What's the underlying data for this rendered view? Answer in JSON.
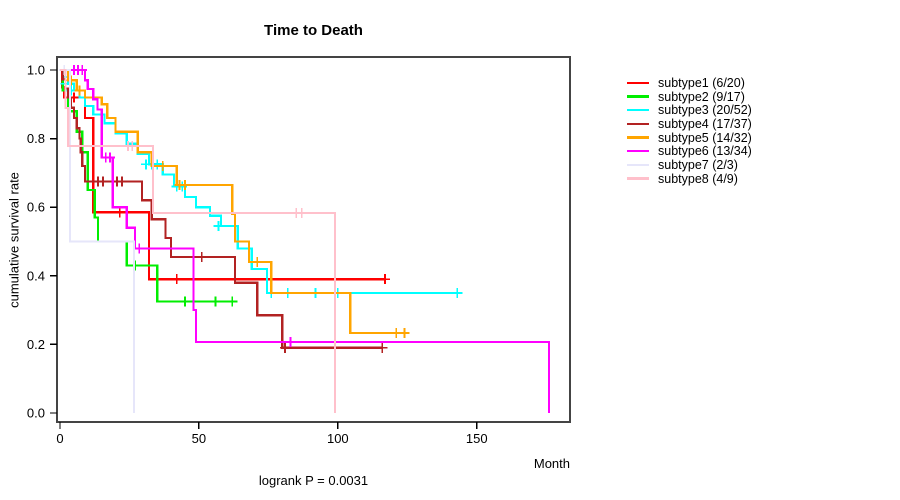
{
  "chart_data": {
    "type": "line",
    "subtype": "kaplan-meier-survival-steps",
    "title": "Time to Death",
    "xlabel": "Month",
    "ylabel": "cumulative survival rate",
    "footnote": "logrank P = 0.0031",
    "xlim": [
      0,
      183
    ],
    "ylim": [
      0,
      1
    ],
    "xticks": [
      0,
      50,
      100,
      150
    ],
    "yticks": [
      0.0,
      0.2,
      0.4,
      0.6,
      0.8,
      1.0
    ],
    "grid": false,
    "legend_position": "right-outside",
    "axis_color": "#444444",
    "series": [
      {
        "name": "subtype1",
        "label": "subtype1 (6/20)",
        "events": "6/20",
        "color": "#ff0000",
        "steps": [
          [
            0,
            1.0
          ],
          [
            0.7,
            0.95
          ],
          [
            1.5,
            0.92
          ],
          [
            9,
            0.86
          ],
          [
            12,
            0.585
          ],
          [
            32,
            0.39
          ],
          [
            117,
            0.39
          ]
        ],
        "censors": [
          [
            5,
            0.92
          ],
          [
            21.5,
            0.585
          ],
          [
            24,
            0.585
          ],
          [
            42,
            0.39
          ],
          [
            117,
            0.39
          ]
        ]
      },
      {
        "name": "subtype2",
        "label": "subtype2 (9/17)",
        "events": "9/17",
        "color": "#00ee00",
        "steps": [
          [
            0,
            1.0
          ],
          [
            1,
            0.94
          ],
          [
            3,
            0.88
          ],
          [
            6,
            0.82
          ],
          [
            8,
            0.76
          ],
          [
            10,
            0.65
          ],
          [
            12.5,
            0.57
          ],
          [
            13.7,
            0.5
          ],
          [
            24,
            0.43
          ],
          [
            35,
            0.325
          ],
          [
            62,
            0.325
          ]
        ],
        "censors": [
          [
            27,
            0.43
          ],
          [
            45,
            0.325
          ],
          [
            56,
            0.325
          ],
          [
            62,
            0.325
          ]
        ]
      },
      {
        "name": "subtype3",
        "label": "subtype3 (20/52)",
        "events": "20/52",
        "color": "#00ffff",
        "steps": [
          [
            0,
            1.0
          ],
          [
            1,
            0.98
          ],
          [
            3,
            0.96
          ],
          [
            5,
            0.94
          ],
          [
            7,
            0.92
          ],
          [
            9,
            0.895
          ],
          [
            12,
            0.87
          ],
          [
            16,
            0.845
          ],
          [
            20,
            0.815
          ],
          [
            24,
            0.785
          ],
          [
            28,
            0.755
          ],
          [
            32,
            0.725
          ],
          [
            37,
            0.695
          ],
          [
            41,
            0.66
          ],
          [
            45,
            0.63
          ],
          [
            49,
            0.6
          ],
          [
            54,
            0.575
          ],
          [
            58,
            0.545
          ],
          [
            64,
            0.48
          ],
          [
            69,
            0.42
          ],
          [
            74.5,
            0.35
          ],
          [
            143,
            0.35
          ]
        ],
        "censors": [
          [
            2,
            0.96
          ],
          [
            4,
            0.94
          ],
          [
            31,
            0.725
          ],
          [
            33,
            0.725
          ],
          [
            35,
            0.725
          ],
          [
            42,
            0.66
          ],
          [
            44,
            0.66
          ],
          [
            57,
            0.545
          ],
          [
            76,
            0.35
          ],
          [
            82,
            0.35
          ],
          [
            92,
            0.35
          ],
          [
            100,
            0.35
          ],
          [
            143,
            0.35
          ]
        ]
      },
      {
        "name": "subtype4",
        "label": "subtype4 (17/37)",
        "events": "17/37",
        "color": "#b22222",
        "steps": [
          [
            0,
            1.0
          ],
          [
            1,
            0.973
          ],
          [
            2,
            0.946
          ],
          [
            3,
            0.92
          ],
          [
            4,
            0.89
          ],
          [
            5,
            0.86
          ],
          [
            6,
            0.83
          ],
          [
            7,
            0.8
          ],
          [
            7.5,
            0.76
          ],
          [
            8,
            0.72
          ],
          [
            9,
            0.675
          ],
          [
            29.5,
            0.62
          ],
          [
            33,
            0.565
          ],
          [
            38,
            0.51
          ],
          [
            40,
            0.455
          ],
          [
            63,
            0.38
          ],
          [
            71,
            0.285
          ],
          [
            80,
            0.19
          ],
          [
            116,
            0.19
          ]
        ],
        "censors": [
          [
            13.7,
            0.675
          ],
          [
            15.5,
            0.675
          ],
          [
            20.5,
            0.675
          ],
          [
            22.3,
            0.675
          ],
          [
            48,
            0.455
          ],
          [
            51,
            0.455
          ],
          [
            81,
            0.19
          ],
          [
            116,
            0.19
          ]
        ]
      },
      {
        "name": "subtype5",
        "label": "subtype5 (14/32)",
        "events": "14/32",
        "color": "#ffa500",
        "steps": [
          [
            0,
            1.0
          ],
          [
            3,
            0.97
          ],
          [
            6,
            0.94
          ],
          [
            9,
            0.92
          ],
          [
            15,
            0.9
          ],
          [
            17,
            0.86
          ],
          [
            20,
            0.82
          ],
          [
            28,
            0.76
          ],
          [
            33,
            0.72
          ],
          [
            42,
            0.665
          ],
          [
            62,
            0.58
          ],
          [
            63,
            0.5
          ],
          [
            68,
            0.44
          ],
          [
            76,
            0.35
          ],
          [
            104.5,
            0.233
          ],
          [
            125,
            0.233
          ]
        ],
        "censors": [
          [
            4,
            0.97
          ],
          [
            7,
            0.94
          ],
          [
            37,
            0.72
          ],
          [
            43,
            0.665
          ],
          [
            45,
            0.665
          ],
          [
            71,
            0.44
          ],
          [
            121,
            0.233
          ],
          [
            124,
            0.233
          ]
        ]
      },
      {
        "name": "subtype6",
        "label": "subtype6 (13/34)",
        "events": "13/34",
        "color": "#ff00ff",
        "steps": [
          [
            0,
            1.0
          ],
          [
            9,
            0.97
          ],
          [
            10,
            0.945
          ],
          [
            12,
            0.915
          ],
          [
            13.5,
            0.885
          ],
          [
            15,
            0.745
          ],
          [
            19,
            0.6
          ],
          [
            24,
            0.54
          ],
          [
            27,
            0.48
          ],
          [
            48,
            0.3
          ],
          [
            49,
            0.207
          ],
          [
            176,
            0.0
          ]
        ],
        "censors": [
          [
            5,
            1.0
          ],
          [
            6.5,
            1.0
          ],
          [
            8,
            1.0
          ],
          [
            16.5,
            0.745
          ],
          [
            18,
            0.745
          ],
          [
            28.5,
            0.48
          ],
          [
            83,
            0.207
          ]
        ]
      },
      {
        "name": "subtype7",
        "label": "subtype7 (2/3)",
        "events": "2/3",
        "color": "#e6e6fa",
        "steps": [
          [
            0,
            1.0
          ],
          [
            3.6,
            0.5
          ],
          [
            26.6,
            0.0
          ]
        ],
        "censors": [
          [
            1.5,
            1.0
          ]
        ]
      },
      {
        "name": "subtype8",
        "label": "subtype8 (4/9)",
        "events": "4/9",
        "color": "#ffc0cb",
        "steps": [
          [
            0,
            1.0
          ],
          [
            2,
            0.889
          ],
          [
            3,
            0.778
          ],
          [
            33.5,
            0.583
          ],
          [
            99,
            0.0
          ]
        ],
        "censors": [
          [
            24.5,
            0.778
          ],
          [
            26,
            0.778
          ],
          [
            85,
            0.583
          ],
          [
            87,
            0.583
          ]
        ]
      }
    ]
  }
}
